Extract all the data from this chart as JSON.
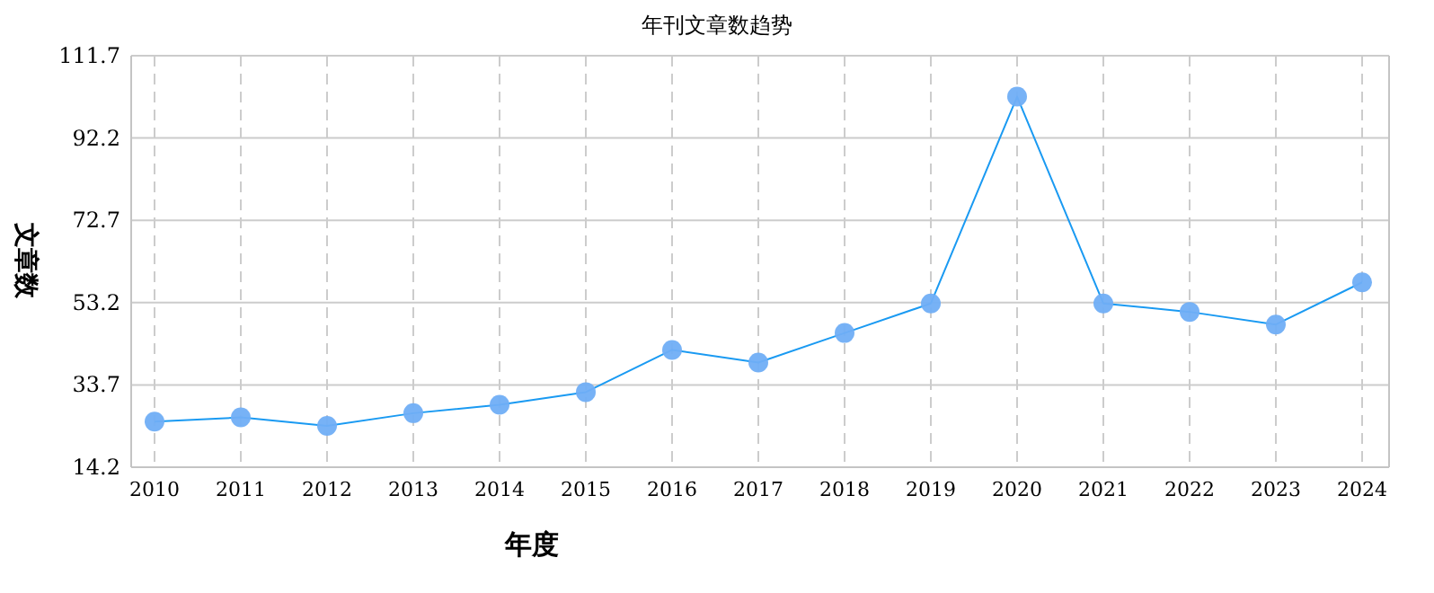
{
  "chart_data": {
    "type": "line",
    "title": "年刊文章数趋势",
    "xlabel": "年度",
    "ylabel": "文章数",
    "categories": [
      "2010",
      "2011",
      "2012",
      "2013",
      "2014",
      "2015",
      "2016",
      "2017",
      "2018",
      "2019",
      "2020",
      "2021",
      "2022",
      "2023",
      "2024"
    ],
    "series": [
      {
        "color": "#1a9af2",
        "values": [
          25,
          26,
          24,
          27,
          29,
          32,
          42,
          39,
          46,
          53,
          102,
          53,
          51,
          48,
          58
        ]
      }
    ],
    "ylim": [
      14.2,
      111.7
    ],
    "yticks": [
      14.2,
      33.7,
      53.2,
      72.7,
      92.2,
      111.7
    ],
    "grid": true,
    "marker": "circle",
    "line_style": "solid"
  }
}
